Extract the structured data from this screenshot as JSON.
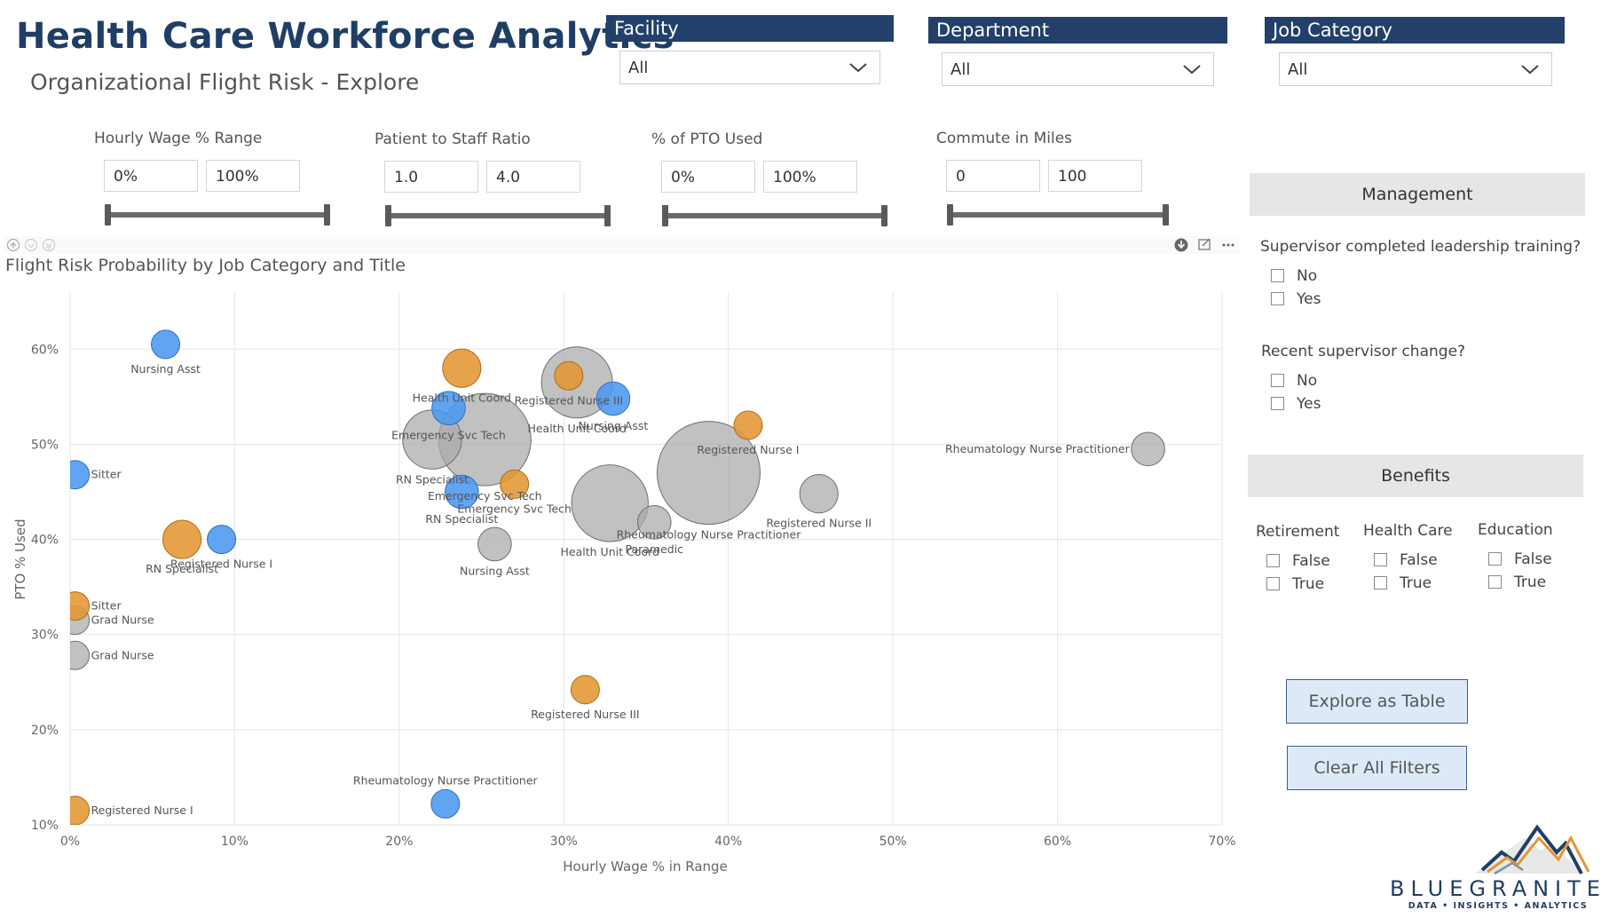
{
  "header": {
    "title": "Health Care Workforce Analytics",
    "subtitle": "Organizational Flight Risk - Explore"
  },
  "slicers": [
    {
      "label": "Facility",
      "value": "All"
    },
    {
      "label": "Department",
      "value": "All"
    },
    {
      "label": "Job Category",
      "value": "All"
    }
  ],
  "ranges": [
    {
      "label": "Hourly Wage % Range",
      "min": "0%",
      "max": "100%"
    },
    {
      "label": "Patient to Staff Ratio",
      "min": "1.0",
      "max": "4.0"
    },
    {
      "label": "% of PTO Used",
      "min": "0%",
      "max": "100%"
    },
    {
      "label": "Commute in Miles",
      "min": "0",
      "max": "100"
    }
  ],
  "management": {
    "title": "Management",
    "q1": "Supervisor completed leadership training?",
    "q2": "Recent supervisor change?",
    "no": "No",
    "yes": "Yes"
  },
  "benefits": {
    "title": "Benefits",
    "columns": [
      "Retirement",
      "Health Care",
      "Education"
    ],
    "false_label": "False",
    "true_label": "True"
  },
  "buttons": {
    "explore": "Explore as Table",
    "clear": "Clear All Filters"
  },
  "logo": {
    "name": "BLUEGRANITE",
    "tagline": "DATA • INSIGHTS • ANALYTICS"
  },
  "chart_data": {
    "type": "scatter",
    "title": "Flight Risk Probability by Job Category and Title",
    "xlabel": "Hourly Wage % in Range",
    "ylabel": "PTO % Used",
    "xlim": [
      0,
      70
    ],
    "ylim": [
      10,
      65
    ],
    "x_ticks": [
      "0%",
      "10%",
      "20%",
      "30%",
      "40%",
      "50%",
      "60%",
      "70%"
    ],
    "y_ticks": [
      "10%",
      "20%",
      "30%",
      "40%",
      "50%",
      "60%"
    ],
    "grid": true,
    "legend": "none",
    "colors": {
      "gray": "#a9a9a9",
      "blue": "#4b97f0",
      "orange": "#e39632"
    },
    "points": [
      {
        "label": "Health Unit Coord",
        "x": 30.8,
        "y": 56.5,
        "size": 1.0,
        "color": "gray"
      },
      {
        "label": "Emergency Svc Tech",
        "x": 25.2,
        "y": 50.5,
        "size": 1.3,
        "color": "gray"
      },
      {
        "label": "RN Specialist",
        "x": 22.0,
        "y": 50.5,
        "size": 0.83,
        "color": "gray"
      },
      {
        "label": "Rheumatology Nurse Practitioner",
        "x": 38.8,
        "y": 47.0,
        "size": 1.45,
        "color": "gray"
      },
      {
        "label": "Health Unit Coord",
        "x": 32.8,
        "y": 43.8,
        "size": 1.08,
        "color": "gray"
      },
      {
        "label": "Paramedic",
        "x": 35.5,
        "y": 41.8,
        "size": 0.47,
        "color": "gray"
      },
      {
        "label": "Registered Nurse II",
        "x": 45.5,
        "y": 44.8,
        "size": 0.54,
        "color": "gray"
      },
      {
        "label": "Rheumatology Nurse Practitioner",
        "x": 65.5,
        "y": 49.5,
        "size": 0.47,
        "color": "gray"
      },
      {
        "label": "Nursing Asst",
        "x": 25.8,
        "y": 39.5,
        "size": 0.47,
        "color": "gray"
      },
      {
        "label": "Grad Nurse",
        "x": 0.3,
        "y": 31.5,
        "size": 0.4,
        "color": "gray"
      },
      {
        "label": "Grad Nurse",
        "x": 0.3,
        "y": 27.8,
        "size": 0.4,
        "color": "gray"
      },
      {
        "label": "Health Unit Coord",
        "x": 23.8,
        "y": 58.0,
        "size": 0.54,
        "color": "orange"
      },
      {
        "label": "Registered Nurse III",
        "x": 30.3,
        "y": 57.2,
        "size": 0.4,
        "color": "orange"
      },
      {
        "label": "Registered Nurse I",
        "x": 41.2,
        "y": 52.0,
        "size": 0.4,
        "color": "orange"
      },
      {
        "label": "Emergency Svc Tech",
        "x": 27.0,
        "y": 45.8,
        "size": 0.4,
        "color": "orange"
      },
      {
        "label": "RN Specialist",
        "x": 6.8,
        "y": 40.0,
        "size": 0.54,
        "color": "orange"
      },
      {
        "label": "Sitter",
        "x": 0.3,
        "y": 33.0,
        "size": 0.4,
        "color": "orange"
      },
      {
        "label": "Registered Nurse III",
        "x": 31.3,
        "y": 24.2,
        "size": 0.4,
        "color": "orange"
      },
      {
        "label": "Registered Nurse I",
        "x": 0.3,
        "y": 11.5,
        "size": 0.4,
        "color": "orange"
      },
      {
        "label": "Nursing Asst",
        "x": 5.8,
        "y": 60.5,
        "size": 0.4,
        "color": "blue"
      },
      {
        "label": "Nursing Asst",
        "x": 33.0,
        "y": 54.8,
        "size": 0.47,
        "color": "blue"
      },
      {
        "label": "Emergency Svc Tech",
        "x": 23.0,
        "y": 53.8,
        "size": 0.47,
        "color": "blue"
      },
      {
        "label": "Sitter",
        "x": 0.3,
        "y": 46.8,
        "size": 0.4,
        "color": "blue"
      },
      {
        "label": "RN Specialist",
        "x": 23.8,
        "y": 45.0,
        "size": 0.47,
        "color": "blue"
      },
      {
        "label": "Registered Nurse I",
        "x": 9.2,
        "y": 40.0,
        "size": 0.4,
        "color": "blue"
      },
      {
        "label": "Rheumatology Nurse Practitioner",
        "x": 22.8,
        "y": 12.2,
        "size": 0.4,
        "color": "blue"
      }
    ]
  }
}
